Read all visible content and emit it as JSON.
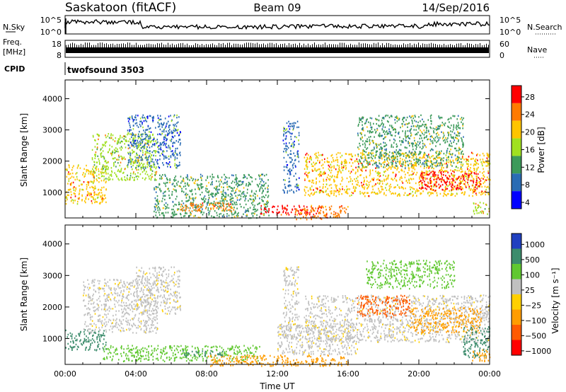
{
  "header": {
    "station": "Saskatoon (fitACF)",
    "beam": "Beam 09",
    "date": "14/Sep/2016"
  },
  "top_panels": {
    "nsky_label": "N.Sky",
    "nsky_ticks_left": [
      "10^5",
      "10^0"
    ],
    "nsearch_label": "N.Search",
    "nsearch_ticks_right": [
      "10^5",
      "10^0"
    ],
    "freq_label_1": "Freq.",
    "freq_label_2": "[MHz]",
    "freq_ticks": [
      "18",
      "8"
    ],
    "nave_label": "Nave",
    "nave_ticks": [
      "60",
      "0"
    ],
    "cpid_label": "CPID",
    "cpid_value": "twofsound 3503"
  },
  "chart_data": [
    {
      "type": "heatmap",
      "panel": "power",
      "xlabel": "",
      "ylabel": "Slant Range [km]",
      "yticks": [
        1000,
        2000,
        3000,
        4000
      ],
      "ylim": [
        180,
        4600
      ],
      "xlim": [
        0,
        24
      ],
      "colorbar": {
        "label": "Power [dB]",
        "ticks": [
          "28",
          "24",
          "20",
          "16",
          "12",
          "8",
          "4"
        ],
        "colors": [
          "#ff0000",
          "#ff7a00",
          "#ffc400",
          "#a0e020",
          "#3c9a5a",
          "#2a6cb4",
          "#0000ff"
        ]
      },
      "regions": [
        {
          "x0": 0.0,
          "x1": 2.3,
          "y0": 650,
          "y1": 1900,
          "level": 20
        },
        {
          "x0": 1.5,
          "x1": 5.2,
          "y0": 1400,
          "y1": 2900,
          "level": 16
        },
        {
          "x0": 3.5,
          "x1": 6.5,
          "y0": 1800,
          "y1": 3500,
          "level": 8
        },
        {
          "x0": 5.0,
          "x1": 11.5,
          "y0": 200,
          "y1": 1600,
          "level": 12
        },
        {
          "x0": 6.5,
          "x1": 9.5,
          "y0": 400,
          "y1": 700,
          "level": 24
        },
        {
          "x0": 11.0,
          "x1": 14.5,
          "y0": 300,
          "y1": 600,
          "level": 28
        },
        {
          "x0": 13.0,
          "x1": 16.0,
          "y0": 150,
          "y1": 600,
          "level": 24
        },
        {
          "x0": 12.3,
          "x1": 13.2,
          "y0": 1000,
          "y1": 3300,
          "level": 8
        },
        {
          "x0": 13.5,
          "x1": 24.0,
          "y0": 900,
          "y1": 2300,
          "level": 20
        },
        {
          "x0": 16.5,
          "x1": 22.5,
          "y0": 1800,
          "y1": 3500,
          "level": 12
        },
        {
          "x0": 20.0,
          "x1": 23.5,
          "y0": 1100,
          "y1": 1700,
          "level": 28
        },
        {
          "x0": 23.0,
          "x1": 24.0,
          "y0": 300,
          "y1": 700,
          "level": 16
        }
      ]
    },
    {
      "type": "heatmap",
      "panel": "velocity",
      "xlabel": "Time UT",
      "ylabel": "Slant Range [km]",
      "xticks": [
        "00:00",
        "04:00",
        "08:00",
        "12:00",
        "16:00",
        "20:00",
        "00:00"
      ],
      "xtick_hours": [
        0,
        4,
        8,
        12,
        16,
        20,
        24
      ],
      "yticks": [
        1000,
        2000,
        3000,
        4000
      ],
      "ylim": [
        180,
        4600
      ],
      "xlim": [
        0,
        24
      ],
      "colorbar": {
        "label": "Velocity [m s⁻¹]",
        "ticks": [
          "1000",
          "500",
          "100",
          "25",
          "−25",
          "−100",
          "−500",
          "−1000"
        ],
        "colors": [
          "#2040c0",
          "#3c8c6c",
          "#60c830",
          "#c0c0c0",
          "#ffd000",
          "#ff9c00",
          "#ff5a00",
          "#ff0000"
        ]
      },
      "regions": [
        {
          "x0": 0.0,
          "x1": 2.3,
          "y0": 650,
          "y1": 1300,
          "level": 500
        },
        {
          "x0": 1.0,
          "x1": 5.2,
          "y0": 1200,
          "y1": 2900,
          "level": 0
        },
        {
          "x0": 4.0,
          "x1": 6.5,
          "y0": 1800,
          "y1": 3300,
          "level": 0
        },
        {
          "x0": 2.0,
          "x1": 11.0,
          "y0": 300,
          "y1": 800,
          "level": 100
        },
        {
          "x0": 6.5,
          "x1": 9.0,
          "y0": 450,
          "y1": 650,
          "level": 500
        },
        {
          "x0": 8.0,
          "x1": 16.0,
          "y0": 150,
          "y1": 500,
          "level": -100
        },
        {
          "x0": 12.0,
          "x1": 16.5,
          "y0": 500,
          "y1": 1500,
          "level": 0
        },
        {
          "x0": 12.3,
          "x1": 13.2,
          "y0": 1000,
          "y1": 3300,
          "level": 0
        },
        {
          "x0": 13.5,
          "x1": 24.0,
          "y0": 900,
          "y1": 2400,
          "level": 0
        },
        {
          "x0": 16.5,
          "x1": 19.5,
          "y0": 1700,
          "y1": 2400,
          "level": -500
        },
        {
          "x0": 17.0,
          "x1": 22.0,
          "y0": 2600,
          "y1": 3500,
          "level": 100
        },
        {
          "x0": 19.5,
          "x1": 23.5,
          "y0": 1200,
          "y1": 2000,
          "level": -100
        },
        {
          "x0": 22.5,
          "x1": 24.0,
          "y0": 400,
          "y1": 1400,
          "level": 500
        },
        {
          "x0": 23.0,
          "x1": 24.0,
          "y0": 300,
          "y1": 700,
          "level": -100
        }
      ]
    }
  ]
}
